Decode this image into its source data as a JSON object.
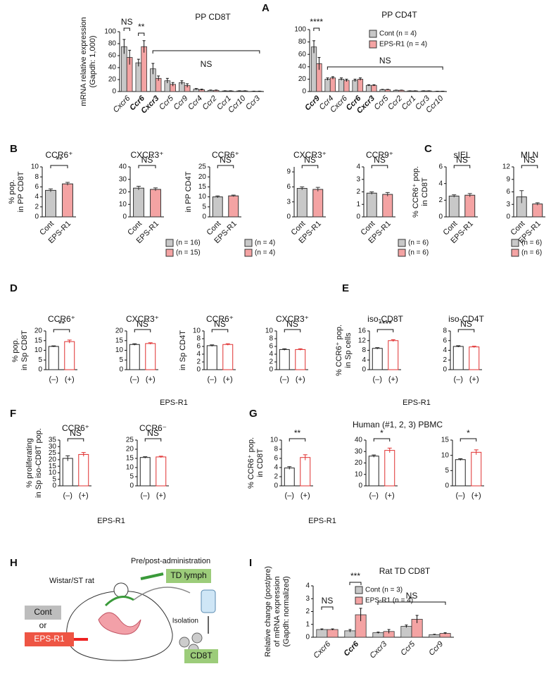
{
  "figure_texts": {
    "panels": [
      "A",
      "B",
      "C",
      "D",
      "E",
      "F",
      "G",
      "H",
      "I"
    ],
    "x_labels": [
      "EPS-R1",
      "EPS-R1",
      "EPS-R1",
      "EPS-R1"
    ],
    "g_title": "Human (#1, 2, 3) PBMC"
  },
  "diagram": {
    "rat": "Wistar/ST rat",
    "timing": "Pre/post-administration",
    "lymph": "TD lymph",
    "isolation": "Isolation",
    "cont": "Cont",
    "or": "or",
    "eps": "EPS-R1",
    "cell": "CD8T"
  },
  "chart_data": [
    {
      "type": "bar",
      "title": "PP CD8T",
      "ylabel": [
        "mRNA relative expression",
        "(Gapdh: 1,000)"
      ],
      "categories": [
        "Cxcr6",
        "Ccr6",
        "Cxcr3",
        "Ccr5",
        "Ccr9",
        "Ccr4",
        "Ccr2",
        "Ccr1",
        "Ccr10",
        "Ccr3"
      ],
      "category_style": "italic",
      "bold_categories": [
        "Ccr6",
        "Cxcr3"
      ],
      "series": [
        {
          "name": "Cont",
          "color": "#c8c8c8",
          "values": [
            75,
            48,
            38,
            18,
            15,
            4,
            2,
            1,
            1,
            0.5
          ],
          "errors": [
            12,
            6,
            9,
            4,
            3,
            1,
            0.5,
            0.3,
            0.3,
            0.2
          ]
        },
        {
          "name": "EPS-R1",
          "color": "#f4a3a3",
          "values": [
            57,
            75,
            22,
            12,
            10,
            3,
            2,
            1,
            1,
            0.5
          ],
          "errors": [
            12,
            10,
            4,
            3,
            3,
            1,
            0.5,
            0.3,
            0.3,
            0.2
          ]
        }
      ],
      "ylim": [
        0,
        100
      ],
      "yticks": [
        0,
        20,
        40,
        60,
        80,
        100
      ],
      "annotations": [
        "NS",
        "**",
        "NS"
      ]
    },
    {
      "type": "bar",
      "title": "PP CD4T",
      "categories": [
        "Ccr9",
        "Ccr4",
        "Cxcr6",
        "Ccr6",
        "Cxcr3",
        "Ccr5",
        "Ccr2",
        "Ccr1",
        "Ccr3",
        "Ccr10"
      ],
      "category_style": "italic",
      "bold_categories": [
        "Ccr9",
        "Ccr6",
        "Cxcr3"
      ],
      "series": [
        {
          "name": "Cont (n = 4)",
          "color": "#c8c8c8",
          "values": [
            72,
            20,
            20,
            18,
            10,
            3,
            2,
            1,
            1,
            0.5
          ],
          "errors": [
            10,
            2,
            2,
            2,
            1,
            0.5,
            0.3,
            0.2,
            0.2,
            0.1
          ]
        },
        {
          "name": "EPS-R1 (n = 4)",
          "color": "#f4a3a3",
          "values": [
            45,
            22,
            18,
            20,
            10,
            3,
            2,
            1,
            1,
            0.5
          ],
          "errors": [
            10,
            2,
            2,
            2,
            1,
            0.5,
            0.3,
            0.2,
            0.2,
            0.1
          ]
        }
      ],
      "ylim": [
        0,
        100
      ],
      "yticks": [
        0,
        20,
        40,
        60,
        80,
        100
      ],
      "annotations": [
        "****",
        "NS"
      ]
    },
    {
      "type": "bar",
      "title": "CCR6⁺",
      "ylabel": [
        "% pop.",
        "in PP CD8T"
      ],
      "categories": [
        "Cont",
        "EPS-R1"
      ],
      "values": [
        5.3,
        6.6
      ],
      "errors": [
        0.3,
        0.3
      ],
      "colors": [
        "#c8c8c8",
        "#f4a3a3"
      ],
      "edge_colors": [
        "#333333",
        "#333333"
      ],
      "ylim": [
        0,
        10
      ],
      "yticks": [
        0,
        2,
        4,
        6,
        8,
        10
      ],
      "annotations": [
        "**"
      ]
    },
    {
      "type": "bar",
      "title": "CXCR3⁺",
      "categories": [
        "Cont",
        "EPS-R1"
      ],
      "values": [
        23,
        22
      ],
      "errors": [
        1.5,
        1.2
      ],
      "colors": [
        "#c8c8c8",
        "#f4a3a3"
      ],
      "edge_colors": [
        "#333333",
        "#333333"
      ],
      "ylim": [
        0,
        40
      ],
      "yticks": [
        0,
        10,
        20,
        30,
        40
      ],
      "annotations": [
        "NS"
      ],
      "legend": [
        "(n = 16)",
        "(n = 15)"
      ]
    },
    {
      "type": "bar",
      "title": "CCR6⁺",
      "ylabel": [
        "in PP CD4T"
      ],
      "categories": [
        "Cont",
        "EPS-R1"
      ],
      "values": [
        10,
        10.5
      ],
      "errors": [
        0.5,
        0.4
      ],
      "colors": [
        "#c8c8c8",
        "#f4a3a3"
      ],
      "edge_colors": [
        "#333333",
        "#333333"
      ],
      "ylim": [
        0,
        25
      ],
      "yticks": [
        0,
        5,
        10,
        15,
        20,
        25
      ],
      "annotations": [
        "NS"
      ],
      "legend": [
        "(n = 4)",
        "(n = 4)"
      ]
    },
    {
      "type": "bar",
      "title": "CXCR3⁺",
      "categories": [
        "Cont",
        "EPS-R1"
      ],
      "values": [
        5.7,
        5.5
      ],
      "errors": [
        0.3,
        0.4
      ],
      "colors": [
        "#c8c8c8",
        "#f4a3a3"
      ],
      "edge_colors": [
        "#333333",
        "#333333"
      ],
      "ylim": [
        0,
        10
      ],
      "yticks": [
        0,
        3,
        6,
        9
      ],
      "annotations": [
        "NS"
      ]
    },
    {
      "type": "bar",
      "title": "CCR9⁺",
      "categories": [
        "Cont",
        "EPS-R1"
      ],
      "values": [
        1.9,
        1.8
      ],
      "errors": [
        0.1,
        0.15
      ],
      "colors": [
        "#c8c8c8",
        "#f4a3a3"
      ],
      "edge_colors": [
        "#333333",
        "#333333"
      ],
      "ylim": [
        0,
        4
      ],
      "yticks": [
        0,
        1,
        2,
        3,
        4
      ],
      "annotations": [
        "NS"
      ],
      "legend": [
        "(n = 6)",
        "(n = 6)"
      ]
    },
    {
      "type": "bar",
      "title": "sIEL",
      "ylabel": [
        "% CCR6⁺ pop.",
        "in CD8T"
      ],
      "categories": [
        "Cont",
        "EPS-R1"
      ],
      "values": [
        2.5,
        2.6
      ],
      "errors": [
        0.15,
        0.2
      ],
      "colors": [
        "#c8c8c8",
        "#f4a3a3"
      ],
      "edge_colors": [
        "#333333",
        "#333333"
      ],
      "ylim": [
        0,
        6
      ],
      "yticks": [
        0,
        2,
        4,
        6
      ],
      "annotations": [
        "NS"
      ]
    },
    {
      "type": "bar",
      "title": "MLN",
      "categories": [
        "Cont",
        "EPS-R1"
      ],
      "values": [
        4.8,
        3.1
      ],
      "errors": [
        1.5,
        0.3
      ],
      "colors": [
        "#c8c8c8",
        "#f4a3a3"
      ],
      "edge_colors": [
        "#333333",
        "#333333"
      ],
      "ylim": [
        0,
        12
      ],
      "yticks": [
        0,
        3,
        6,
        9,
        12
      ],
      "annotations": [
        "NS"
      ],
      "legend": [
        "(n = 6)",
        "(n = 6)"
      ]
    },
    {
      "type": "bar",
      "title": "CCR6⁺",
      "ylabel": [
        "% pop.",
        "in Sp CD8T"
      ],
      "categories": [
        "(–)",
        "(+)"
      ],
      "values": [
        12,
        14.5
      ],
      "errors": [
        0.3,
        0.8
      ],
      "colors": [
        "#ffffff",
        "#ffffff"
      ],
      "edge_colors": [
        "#222222",
        "#e03030"
      ],
      "ylim": [
        0,
        20
      ],
      "yticks": [
        0,
        5,
        10,
        15,
        20
      ],
      "annotations": [
        "**"
      ]
    },
    {
      "type": "bar",
      "title": "CXCR3⁺",
      "categories": [
        "(–)",
        "(+)"
      ],
      "values": [
        13,
        13.5
      ],
      "errors": [
        0.4,
        0.4
      ],
      "colors": [
        "#ffffff",
        "#ffffff"
      ],
      "edge_colors": [
        "#222222",
        "#e03030"
      ],
      "ylim": [
        0,
        20
      ],
      "yticks": [
        0,
        5,
        10,
        15,
        20
      ],
      "annotations": [
        "NS"
      ]
    },
    {
      "type": "bar",
      "title": "CCR6⁺",
      "ylabel": [
        "in Sp CD4T"
      ],
      "categories": [
        "(–)",
        "(+)"
      ],
      "values": [
        6.2,
        6.5
      ],
      "errors": [
        0.2,
        0.2
      ],
      "colors": [
        "#ffffff",
        "#ffffff"
      ],
      "edge_colors": [
        "#222222",
        "#e03030"
      ],
      "ylim": [
        0,
        10
      ],
      "yticks": [
        0,
        2,
        4,
        6,
        8,
        10
      ],
      "annotations": [
        "NS"
      ]
    },
    {
      "type": "bar",
      "title": "CXCR3⁺",
      "categories": [
        "(–)",
        "(+)"
      ],
      "values": [
        5.2,
        5.2
      ],
      "errors": [
        0.2,
        0.2
      ],
      "colors": [
        "#ffffff",
        "#ffffff"
      ],
      "edge_colors": [
        "#222222",
        "#e03030"
      ],
      "ylim": [
        0,
        10
      ],
      "yticks": [
        0,
        2,
        4,
        6,
        8,
        10
      ],
      "annotations": [
        "NS"
      ]
    },
    {
      "type": "bar",
      "title": "iso-CD8T",
      "ylabel": [
        "% CCR6⁺ pop.",
        "in Sp cells"
      ],
      "categories": [
        "(–)",
        "(+)"
      ],
      "values": [
        8.8,
        12
      ],
      "errors": [
        0.3,
        0.4
      ],
      "colors": [
        "#ffffff",
        "#ffffff"
      ],
      "edge_colors": [
        "#222222",
        "#e03030"
      ],
      "ylim": [
        0,
        16
      ],
      "yticks": [
        0,
        4,
        8,
        12,
        16
      ],
      "annotations": [
        "****"
      ]
    },
    {
      "type": "bar",
      "title": "iso-CD4T",
      "categories": [
        "(–)",
        "(+)"
      ],
      "values": [
        4.8,
        4.7
      ],
      "errors": [
        0.15,
        0.15
      ],
      "colors": [
        "#ffffff",
        "#ffffff"
      ],
      "edge_colors": [
        "#222222",
        "#e03030"
      ],
      "ylim": [
        0,
        8
      ],
      "yticks": [
        0,
        2,
        4,
        6,
        8
      ],
      "annotations": [
        "NS"
      ]
    },
    {
      "type": "bar",
      "title": "CCR6⁺",
      "ylabel": [
        "% proliferating",
        "in Sp iso-CD8T pop."
      ],
      "categories": [
        "(–)",
        "(+)"
      ],
      "values": [
        21,
        24
      ],
      "errors": [
        2,
        1.5
      ],
      "colors": [
        "#ffffff",
        "#ffffff"
      ],
      "edge_colors": [
        "#222222",
        "#e03030"
      ],
      "ylim": [
        0,
        35
      ],
      "yticks": [
        0,
        5,
        10,
        15,
        20,
        25,
        30,
        35
      ],
      "annotations": [
        "NS"
      ]
    },
    {
      "type": "bar",
      "title": "CCR6⁻",
      "categories": [
        "(–)",
        "(+)"
      ],
      "values": [
        15.5,
        15.8
      ],
      "errors": [
        0.4,
        0.4
      ],
      "colors": [
        "#ffffff",
        "#ffffff"
      ],
      "edge_colors": [
        "#222222",
        "#e03030"
      ],
      "ylim": [
        0,
        25
      ],
      "yticks": [
        0,
        5,
        10,
        15,
        20,
        25
      ],
      "annotations": [
        "NS"
      ]
    },
    {
      "type": "bar",
      "ylabel": [
        "% CCR6⁺ pop.",
        "in CD8T"
      ],
      "categories": [
        "(–)",
        "(+)"
      ],
      "values": [
        3.9,
        6.2
      ],
      "errors": [
        0.3,
        0.6
      ],
      "colors": [
        "#ffffff",
        "#ffffff"
      ],
      "edge_colors": [
        "#222222",
        "#e03030"
      ],
      "ylim": [
        0,
        10
      ],
      "yticks": [
        0,
        2,
        4,
        6,
        8,
        10
      ],
      "annotations": [
        "**"
      ]
    },
    {
      "type": "bar",
      "categories": [
        "(–)",
        "(+)"
      ],
      "values": [
        26,
        31
      ],
      "errors": [
        1,
        2
      ],
      "colors": [
        "#ffffff",
        "#ffffff"
      ],
      "edge_colors": [
        "#222222",
        "#e03030"
      ],
      "ylim": [
        0,
        40
      ],
      "yticks": [
        0,
        10,
        20,
        30,
        40
      ],
      "annotations": [
        "*"
      ]
    },
    {
      "type": "bar",
      "categories": [
        "(–)",
        "(+)"
      ],
      "values": [
        8.6,
        11
      ],
      "errors": [
        0.3,
        0.8
      ],
      "colors": [
        "#ffffff",
        "#ffffff"
      ],
      "edge_colors": [
        "#222222",
        "#e03030"
      ],
      "ylim": [
        0,
        15
      ],
      "yticks": [
        0,
        5,
        10,
        15
      ],
      "annotations": [
        "*"
      ]
    },
    {
      "type": "bar",
      "title": "Rat TD CD8T",
      "ylabel": [
        "Relative change (post/pre)",
        "of mRNA expression",
        "(Gapdh: normalized)"
      ],
      "categories": [
        "Cxcr6",
        "Ccr6",
        "Cxcr3",
        "Ccr5",
        "Ccr9"
      ],
      "category_style": "italic",
      "bold_categories": [
        "Ccr6"
      ],
      "series": [
        {
          "name": "Cont (n = 3)",
          "color": "#c8c8c8",
          "values": [
            0.6,
            0.5,
            0.35,
            0.85,
            0.2
          ],
          "errors": [
            0.05,
            0.1,
            0.05,
            0.1,
            0.03
          ]
        },
        {
          "name": "EPS-R1 (n = 4)",
          "color": "#f4a3a3",
          "values": [
            0.6,
            1.75,
            0.45,
            1.4,
            0.3
          ],
          "errors": [
            0.05,
            0.5,
            0.15,
            0.3,
            0.05
          ]
        }
      ],
      "ylim": [
        0,
        4
      ],
      "yticks": [
        0,
        1,
        2,
        3,
        4
      ],
      "annotations": [
        "NS",
        "***",
        "NS"
      ]
    }
  ]
}
